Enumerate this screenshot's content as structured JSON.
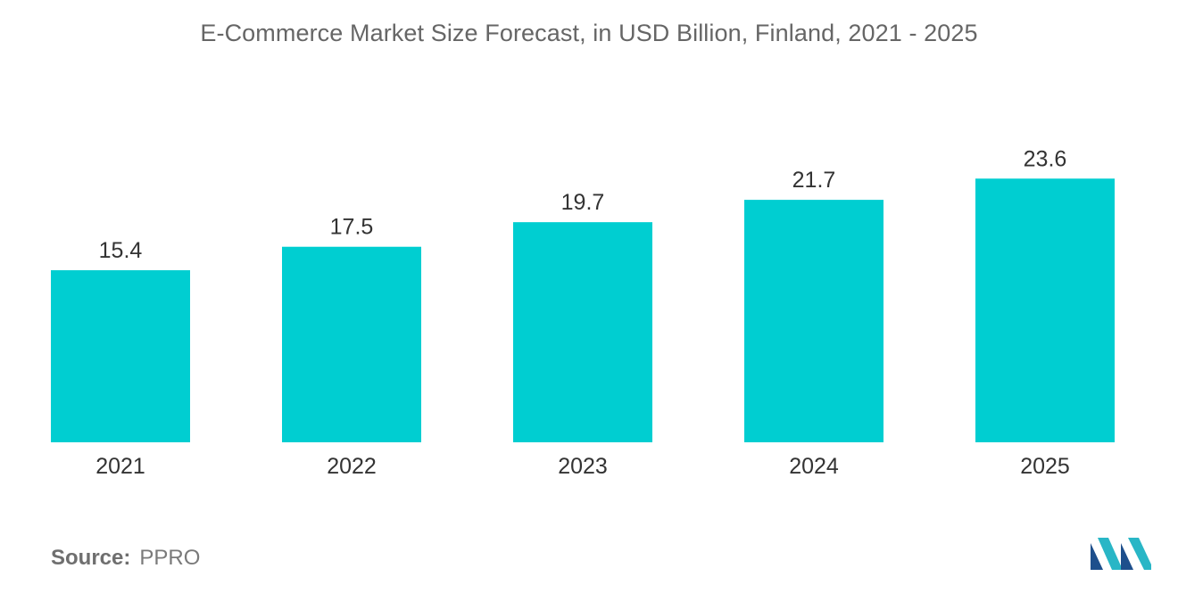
{
  "chart_data": {
    "type": "bar",
    "title": "E-Commerce Market Size Forecast, in USD Billion, Finland, 2021 - 2025",
    "categories": [
      "2021",
      "2022",
      "2023",
      "2024",
      "2025"
    ],
    "values": [
      15.4,
      17.5,
      19.7,
      21.7,
      23.6
    ],
    "value_labels": [
      "15.4",
      "17.5",
      "19.7",
      "21.7",
      "23.6"
    ],
    "xlabel": "",
    "ylabel": "",
    "ylim": [
      0,
      40
    ],
    "grid": false,
    "legend": "none",
    "bar_color": "#00CED1"
  },
  "source": {
    "label": "Source:",
    "value": "PPRO"
  },
  "logo": {
    "name": "mordor-intelligence-logo",
    "colors": [
      "#1E4F8C",
      "#29B6C6"
    ]
  }
}
